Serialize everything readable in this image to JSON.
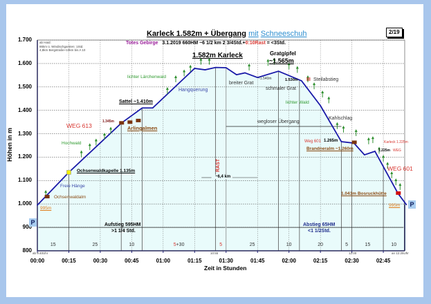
{
  "header": {
    "title_main": "Karleck 1.582m + Übergang",
    "title_mit": "mit",
    "title_tool": "Schneeschuh",
    "region": "Totes Gebirge",
    "stats": "3.1.2019   660HM   ~6 1/2 km   2 3/4Std.+",
    "rast": "0:10Rast",
    "total": " = <3Std.",
    "page": "2/19"
  },
  "note": {
    "line1": "ab Haid:",
    "line2": "86km ü. Windischgarsten: 1Std.",
    "line3": "4,8km Bergstraße+10km bis A 10"
  },
  "chart_data": {
    "type": "area",
    "title": "Karleck 1.582m + Übergang mit Schneeschuh",
    "xlabel": "Zeit in Stunden",
    "ylabel": "Höhen in m",
    "xlim": [
      0,
      176
    ],
    "ylim": [
      800,
      1700
    ],
    "grid": true,
    "x_unit": "minutes",
    "yticks": [
      "1.700",
      "1.600",
      "1.500",
      "1.400",
      "1.300",
      "1.200",
      "1.100",
      "1.000",
      "900",
      "800"
    ],
    "ytick_values": [
      1700,
      1600,
      1500,
      1400,
      1300,
      1200,
      1100,
      1000,
      900,
      800
    ],
    "xticks": [
      "00:00",
      "00:15",
      "00:30",
      "00:45",
      "01:00",
      "01:15",
      "01:30",
      "01:45",
      "02:00",
      "02:15",
      "02:30",
      "02:45"
    ],
    "xtick_values": [
      0,
      15,
      30,
      45,
      60,
      75,
      90,
      105,
      120,
      135,
      150,
      165
    ],
    "profile": {
      "minutes": [
        0,
        15,
        40,
        50,
        55,
        75,
        80,
        85,
        90,
        95,
        99,
        105,
        115,
        126,
        135,
        145,
        151,
        156,
        161,
        172,
        176
      ],
      "elevation": [
        995,
        1135,
        1345,
        1410,
        1410,
        1579,
        1573,
        1583,
        1582,
        1552,
        1560,
        1540,
        1567,
        1526,
        1420,
        1266,
        1260,
        1210,
        1225,
        1045,
        997
      ]
    },
    "segments": {
      "labels": [
        "15",
        "25",
        "10",
        "5+30",
        "5",
        "25",
        "10",
        "20",
        "5",
        "15",
        "10"
      ],
      "end_minutes": [
        15,
        40,
        50,
        85,
        90,
        115,
        125,
        145,
        150,
        165,
        175
      ]
    },
    "time_marks": {
      "start": "ab 9:40Uhr",
      "rast": "10:55",
      "mid": "12:00",
      "end": "an 12:25Uhr"
    },
    "colors": {
      "line": "#1a1aa8",
      "fill": "#e9fbfb",
      "rast": "#d8352f",
      "tree": "#2f8f2f"
    }
  },
  "annotations": {
    "summit": "1.582m Karleck",
    "ridge_peak_1": "Gratgipfel",
    "ridge_peak_2": "~1.565m",
    "larch": "lichter Lärchenwald",
    "traverse": "Hangquerung",
    "broad_ridge": "breiter Grat",
    "saddle_elev": "~1.540m",
    "narrow_ridge": "schmaler Grat",
    "elev_1530": "1.530m",
    "steep_mark": "III",
    "steep": "Steilabstieg",
    "light_forest": "lichter Wald",
    "sattel": "Sattel ~1.410m",
    "clearcut": "Kahlschlag",
    "pathless": "wegloser Übergang",
    "weg613": "WEG 613",
    "elev_1345": "1.345m",
    "arlingalmen": "Arlingalmen",
    "hochwald": "Hochwald",
    "weg601_small": "Weg 601",
    "elev_1265": "1.265m",
    "brandneralm": "Brandneralm ~1.260m",
    "karleck_sign": "Karleck 1.225m",
    "elev_1225": "1.225m",
    "weg_small": "WEG",
    "weg601": "WEG 601",
    "rast": "RAST",
    "distance": "~6,4 km",
    "kapelle": "Ochsenwaldkapelle 1.135m",
    "free_slopes": "Freie Hänge",
    "ochsenwaldalm": "Ochsenwaldalm",
    "start_elev": "995m",
    "bosruck": "1.043m Bosruckhütte",
    "end_elev": "995m",
    "ascent": "Aufstieg 595HM",
    "ascent_time": ">1 1/4 Std.",
    "descent": "Abstieg 65HM",
    "descent_time": "<1 1/2Std.",
    "parking": "P"
  }
}
